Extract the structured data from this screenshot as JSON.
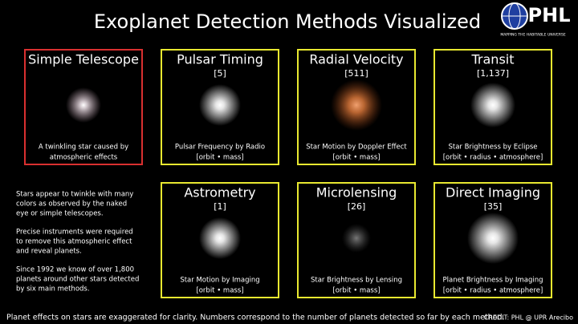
{
  "header": {
    "title": "Exoplanet Detection Methods Visualized",
    "logo": "PHL",
    "logo_tagline": "MAPPING THE HABITABLE UNIVERSE"
  },
  "panels": [
    {
      "name": "Simple Telescope",
      "caption": [
        "A twinkling star caused by",
        "atmospheric effects"
      ]
    },
    {
      "name": "Pulsar Timing",
      "count": "[5]",
      "caption": [
        "Pulsar Frequency by Radio",
        "[orbit • mass]"
      ]
    },
    {
      "name": "Radial Velocity",
      "count": "[511]",
      "caption": [
        "Star Motion by Doppler Effect",
        "[orbit • mass]"
      ]
    },
    {
      "name": "Transit",
      "count": "[1,137]",
      "caption": [
        "Star Brightness by Eclipse",
        "[orbit • radius • atmosphere]"
      ]
    },
    {
      "name": "Astrometry",
      "count": "[1]",
      "caption": [
        "Star Motion by Imaging",
        "[orbit • mass]"
      ]
    },
    {
      "name": "Microlensing",
      "count": "[26]",
      "caption": [
        "Star Brightness by Lensing",
        "[orbit • mass]"
      ]
    },
    {
      "name": "Direct Imaging",
      "count": "[35]",
      "caption": [
        "Planet Brightness by Imaging",
        "[orbit • radius • atmosphere]"
      ]
    }
  ],
  "sidebar": [
    [
      "Stars appear to twinkle with many",
      "colors as observed by the naked",
      "eye or simple telescopes."
    ],
    [
      "Precise instruments were required",
      "to remove this atmospheric effect",
      "and reveal planets."
    ],
    [
      "Since 1992 we know of over 1,800",
      "planets around other stars detected",
      "by six main methods."
    ]
  ],
  "footer": {
    "note": "Planet effects on stars are exaggerated for clarity. Numbers correspond to the number of planets detected so far by each method.",
    "credit": "CREDIT:  PHL @ UPR Arecibo"
  }
}
